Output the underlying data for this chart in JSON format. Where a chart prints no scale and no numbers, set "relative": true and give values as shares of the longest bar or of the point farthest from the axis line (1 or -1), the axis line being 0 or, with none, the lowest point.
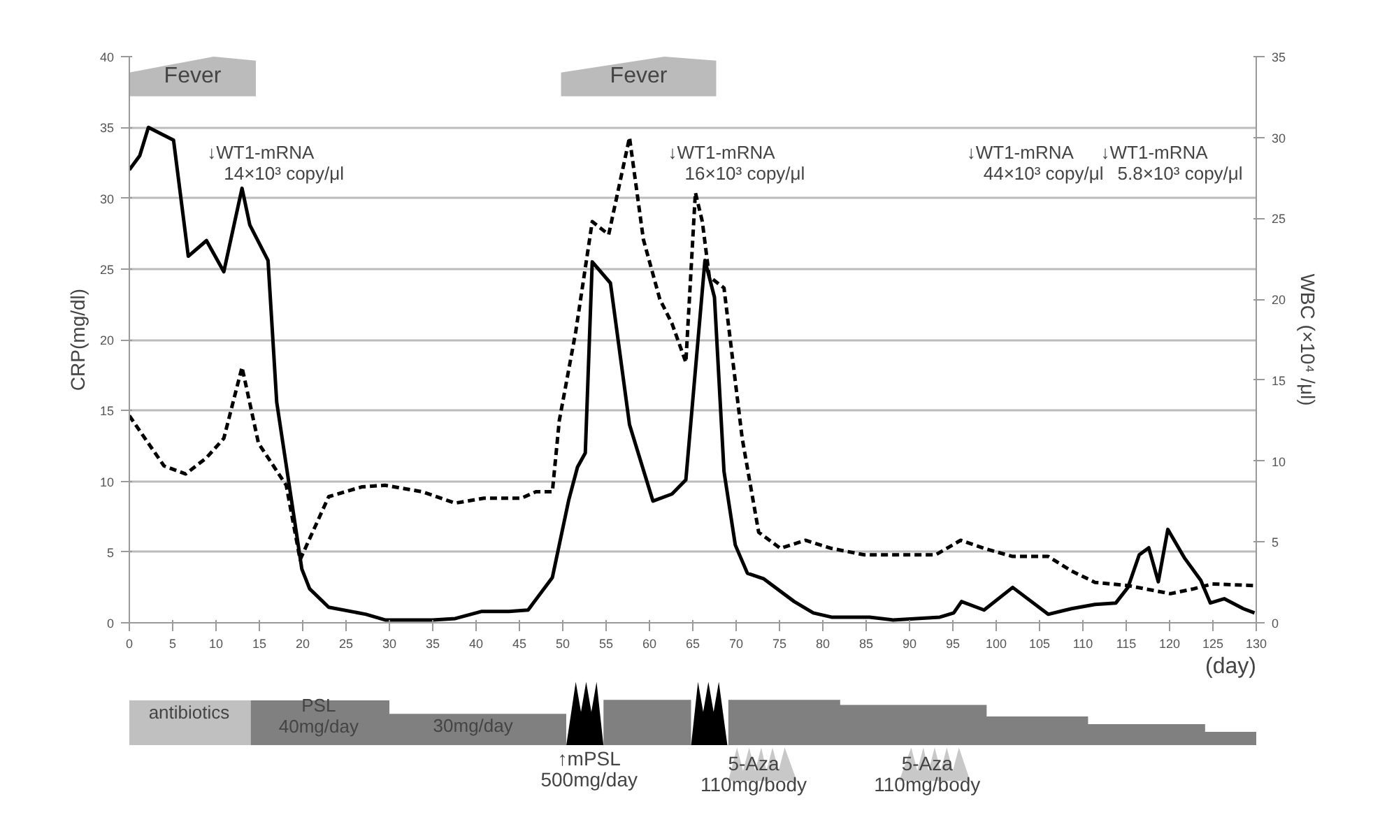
{
  "chart_data": [
    {
      "type": "line",
      "ylabel": "CRP(mg/dl)",
      "y2label": "WBC (×10⁴ /μl)",
      "xlabel": "(day)",
      "xlim": [
        0,
        130
      ],
      "xticks": [
        0,
        5,
        10,
        15,
        20,
        25,
        30,
        35,
        40,
        45,
        50,
        55,
        60,
        65,
        70,
        75,
        80,
        85,
        90,
        95,
        100,
        105,
        110,
        115,
        120,
        125,
        130
      ],
      "ylim": [
        0,
        40
      ],
      "yticks": [
        0,
        5,
        10,
        15,
        20,
        25,
        30,
        35,
        40
      ],
      "y2lim": [
        0,
        35
      ],
      "y2ticks": [
        0,
        5,
        10,
        15,
        20,
        25,
        30,
        35
      ],
      "grid": "y",
      "marker": "none",
      "series": [
        {
          "color": "#000000",
          "line_style": "solid",
          "x": [
            0,
            1.2,
            2.2,
            5.1,
            6.8,
            8.9,
            10.9,
            13,
            13.9,
            16,
            17,
            19.9,
            20.8,
            23,
            27.3,
            29.5,
            35,
            37.6,
            40.6,
            43.8,
            46,
            48.8,
            50.7,
            51.7,
            52.6,
            53.4,
            55.5,
            57.7,
            60.4,
            62.6,
            64.2,
            66.4,
            67.5,
            68.6,
            69.9,
            71.3,
            73.2,
            76.7,
            78.9,
            81,
            85.4,
            88.1,
            90.8,
            93.5,
            95.1,
            96,
            98.6,
            101.9,
            106,
            108.7,
            111.4,
            113.8,
            115.2,
            116.5,
            117.6,
            118.7,
            119.8,
            121.7,
            123.6,
            124.7,
            126.3,
            128.5,
            129.8
          ],
          "values": [
            32,
            33,
            35,
            34.1,
            25.9,
            27,
            24.8,
            30.7,
            28.1,
            25.6,
            15.6,
            3.8,
            2.4,
            1.1,
            0.6,
            0.2,
            0.2,
            0.3,
            0.8,
            0.8,
            0.9,
            3.2,
            8.7,
            11,
            12,
            25.5,
            24,
            14,
            8.6,
            9.1,
            10.1,
            25.6,
            23,
            10.7,
            5.5,
            3.5,
            3.1,
            1.5,
            0.7,
            0.4,
            0.4,
            0.2,
            0.3,
            0.4,
            0.7,
            1.5,
            0.9,
            2.5,
            0.6,
            1,
            1.3,
            1.4,
            2.5,
            4.8,
            5.3,
            2.9,
            6.6,
            4.6,
            3,
            1.4,
            1.7,
            1,
            0.7
          ]
        },
        {
          "color": "#000000",
          "line_style": "dashed",
          "axis": "y2",
          "x": [
            0,
            4,
            6.5,
            8.9,
            10.9,
            13,
            14.9,
            18.1,
            19.7,
            23,
            26.8,
            29.5,
            33.8,
            37.6,
            40.9,
            43.8,
            45.2,
            46.9,
            48.8,
            49.6,
            51.5,
            53.4,
            55.3,
            57.7,
            59.3,
            61.2,
            62.6,
            64.2,
            65.3,
            66.1,
            66.9,
            68.6,
            70.7,
            72.6,
            75.1,
            78,
            81,
            84.8,
            93,
            95.9,
            98.6,
            101.9,
            106,
            108.7,
            111.4,
            115.2,
            120.1,
            122.8,
            124.9,
            129.8
          ],
          "values": [
            12.8,
            9.7,
            9.2,
            10.2,
            11.4,
            15.8,
            11.1,
            8.5,
            3.9,
            7.8,
            8.4,
            8.5,
            8.1,
            7.4,
            7.7,
            7.7,
            7.7,
            8.1,
            8.1,
            12.5,
            18,
            24.8,
            24,
            30,
            23.7,
            20,
            18.5,
            16.1,
            26.6,
            24.8,
            21.4,
            20.7,
            11.4,
            5.6,
            4.6,
            5.1,
            4.6,
            4.2,
            4.2,
            5.1,
            4.6,
            4.1,
            4.1,
            3.2,
            2.5,
            2.3,
            1.8,
            2.1,
            2.4,
            2.3
          ]
        }
      ],
      "bands": [
        {
          "axis": "x",
          "from": 0,
          "to": 14.6,
          "label": "Fever",
          "color": "#bbbbbb"
        },
        {
          "axis": "x",
          "from": 49.8,
          "to": 67.7,
          "label": "Fever",
          "color": "#bbbbbb"
        }
      ],
      "annotations": [
        "↓WT1-mRNA\n14×10³ copy/μl",
        "↓WT1-mRNA\n16×10³ copy/μl",
        "↓WT1-mRNA\n44×10³ copy/μl",
        "↓WT1-mRNA\n5.8×10³ copy/μl"
      ]
    },
    {
      "type": "area",
      "relative": true,
      "xlim": [
        0,
        130
      ],
      "grid": false,
      "series": [
        {
          "color": "#c0c0c0",
          "x": [
            0,
            0,
            14,
            14
          ],
          "values": [
            0,
            0.71,
            0.71,
            0
          ]
        },
        {
          "color": "#808080",
          "x": [
            14,
            14,
            30,
            30,
            50.4,
            50.4,
            54.7,
            54.7,
            64.8,
            64.8,
            69.1,
            69.1,
            82,
            82,
            98.9,
            98.9,
            110.6,
            110.6,
            124.1,
            124.1,
            130,
            130
          ],
          "values": [
            0,
            0.71,
            0.71,
            0.5,
            0.5,
            0,
            0,
            0.72,
            0.72,
            0,
            0,
            0.72,
            0.72,
            0.64,
            0.64,
            0.46,
            0.46,
            0.34,
            0.34,
            0.22,
            0.22,
            0
          ]
        },
        {
          "color": "#000000",
          "x": [
            50.4,
            51.5,
            52.1,
            52.7,
            53.3,
            53.9,
            54.7
          ],
          "values": [
            0,
            1,
            0.53,
            1,
            0.53,
            1,
            0
          ]
        },
        {
          "color": "#000000",
          "x": [
            64.8,
            65.6,
            66.2,
            66.8,
            67.4,
            68,
            69
          ],
          "values": [
            0,
            1,
            0.53,
            1,
            0.53,
            1,
            0
          ]
        }
      ],
      "annotations": [
        "antibiotics",
        "PSL\n40mg/day",
        "30mg/day"
      ]
    },
    {
      "type": "area",
      "relative": true,
      "xlim": [
        0,
        130
      ],
      "grid": false,
      "series": [
        {
          "color": "#c8c8c8",
          "x": [
            69.1,
            70.1,
            70.8,
            71.5,
            72.2,
            72.9,
            73.5,
            74.2,
            74.9,
            75.6,
            77
          ],
          "values": [
            0,
            1,
            0.3,
            1,
            0.3,
            1,
            0.3,
            1,
            0.3,
            1,
            0
          ]
        },
        {
          "color": "#c8c8c8",
          "x": [
            88.8,
            90.2,
            90.9,
            91.6,
            92.2,
            92.9,
            93.6,
            94.3,
            95,
            95.7,
            97
          ],
          "values": [
            0,
            1,
            0.3,
            1,
            0.3,
            1,
            0.3,
            1,
            0.3,
            1,
            0
          ]
        }
      ],
      "annotations": [
        "↑mPSL\n500mg/day",
        "5-Aza\n110mg/body",
        "5-Aza\n110mg/body"
      ]
    }
  ]
}
